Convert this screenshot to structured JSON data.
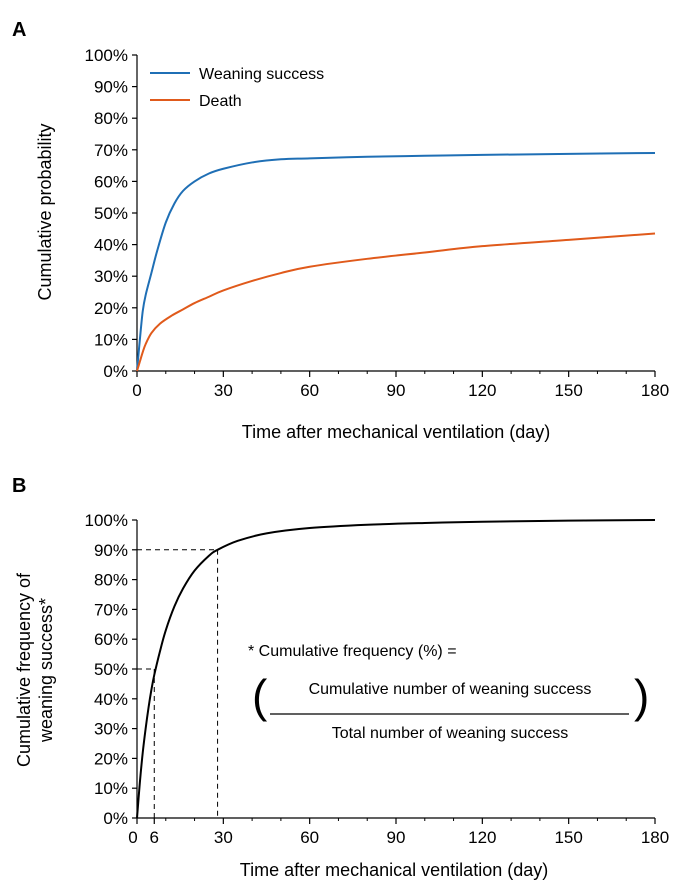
{
  "chart_data": [
    {
      "panel": "A",
      "type": "line",
      "xlabel": "Time after mechanical ventilation (day)",
      "ylabel": "Cumulative probability",
      "xlim": [
        0,
        180
      ],
      "ylim": [
        0,
        100
      ],
      "x_ticks": [
        "0",
        "30",
        "60",
        "90",
        "120",
        "150",
        "180"
      ],
      "y_ticks": [
        "0%",
        "10%",
        "20%",
        "30%",
        "40%",
        "50%",
        "60%",
        "70%",
        "80%",
        "90%",
        "100%"
      ],
      "legend_position": "top-left",
      "grid": false,
      "series": [
        {
          "name": "Weaning success",
          "color": "#1f6fb5",
          "x": [
            0,
            1,
            2,
            3,
            5,
            7,
            10,
            13,
            16,
            20,
            25,
            30,
            40,
            50,
            60,
            80,
            100,
            120,
            150,
            180
          ],
          "y": [
            0,
            10,
            19,
            24,
            31,
            38,
            47,
            53,
            57,
            60,
            62.5,
            64,
            66,
            67,
            67.3,
            67.8,
            68.1,
            68.4,
            68.7,
            69
          ]
        },
        {
          "name": "Death",
          "color": "#e05a1b",
          "x": [
            0,
            1,
            2,
            3,
            5,
            8,
            12,
            16,
            20,
            25,
            30,
            40,
            50,
            60,
            80,
            100,
            120,
            150,
            180
          ],
          "y": [
            0,
            3,
            6,
            8.5,
            12,
            15,
            17.5,
            19.5,
            21.5,
            23.5,
            25.5,
            28.5,
            31,
            33,
            35.5,
            37.5,
            39.5,
            41.5,
            43.5
          ]
        }
      ]
    },
    {
      "panel": "B",
      "type": "line",
      "xlabel": "Time after mechanical ventilation (day)",
      "ylabel_line1": "Cumulative frequency of",
      "ylabel_line2": "weaning success*",
      "xlim": [
        0,
        180
      ],
      "ylim": [
        0,
        100
      ],
      "x_ticks": [
        "0",
        "6",
        "30",
        "60",
        "90",
        "120",
        "150",
        "180"
      ],
      "x_tick_values": [
        0,
        6,
        30,
        60,
        90,
        120,
        150,
        180
      ],
      "y_ticks": [
        "0%",
        "10%",
        "20%",
        "30%",
        "40%",
        "50%",
        "60%",
        "70%",
        "80%",
        "90%",
        "100%"
      ],
      "grid": false,
      "series": [
        {
          "color": "#000000",
          "x": [
            0,
            1,
            2,
            3,
            4,
            5,
            6,
            8,
            10,
            13,
            16,
            20,
            25,
            28,
            35,
            45,
            60,
            80,
            100,
            120,
            150,
            180
          ],
          "y": [
            0,
            12,
            22,
            30,
            37,
            43,
            48,
            56,
            63,
            71,
            77,
            83,
            88,
            90,
            93,
            95.5,
            97.3,
            98.4,
            99,
            99.4,
            99.8,
            100
          ]
        }
      ],
      "reference_lines": [
        {
          "x": 6,
          "y": 50
        },
        {
          "x": 28,
          "y": 90
        }
      ],
      "annotation": {
        "line1": "* Cumulative frequency (%) =",
        "numerator": "Cumulative number of weaning success",
        "denominator": "Total number of weaning success",
        "open_paren": "(",
        "close_paren": ")"
      }
    }
  ]
}
